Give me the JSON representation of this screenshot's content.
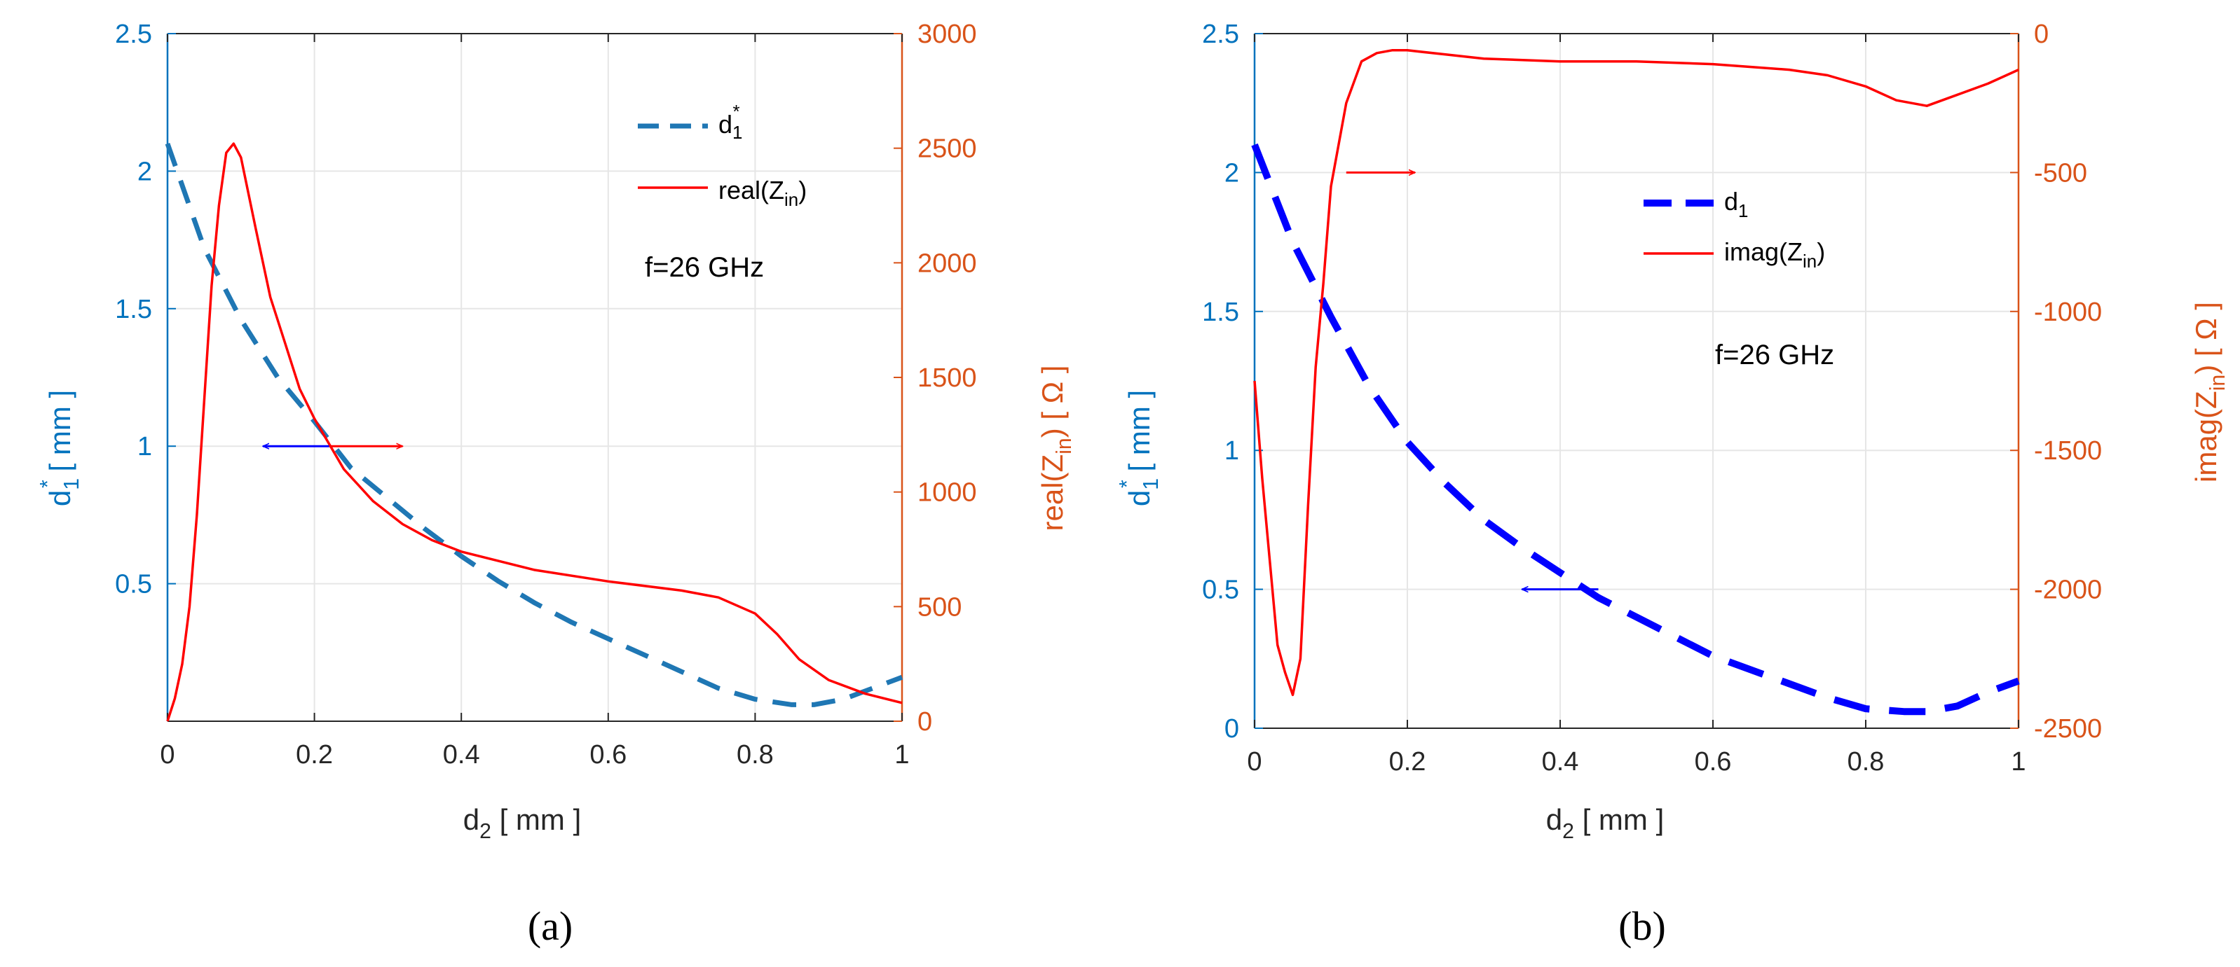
{
  "colors": {
    "left_axis": "#0072bd",
    "right_axis": "#d95319",
    "curve_a_dash": "#1f77b4",
    "curve_b_dash": "#0000ff",
    "impedance": "#ff0000",
    "arrow_left": "#0000ff",
    "grid": "#e6e6e6"
  },
  "chart_data": [
    {
      "type": "line",
      "panel_label": "(a)",
      "annotation": "f=26 GHz",
      "xlabel": {
        "main": "d",
        "sub": "2",
        "rest": " [ mm ]"
      },
      "ylabel_left": {
        "main": "d",
        "sub": "1",
        "sup": "*",
        "rest": " [ mm ]"
      },
      "ylabel_right": {
        "pre": "real(Z",
        "sub": "in",
        "rest": ") [ Ω ]"
      },
      "xlim": [
        0,
        1
      ],
      "ylim_left": [
        0,
        2.5
      ],
      "ylim_right": [
        0,
        3000
      ],
      "xticks": [
        "0",
        "0.2",
        "0.4",
        "0.6",
        "0.8",
        "1"
      ],
      "xtick_values": [
        0,
        0.2,
        0.4,
        0.6,
        0.8,
        1
      ],
      "yticks_left": [
        "0.5",
        "1",
        "1.5",
        "2",
        "2.5"
      ],
      "ytick_left_values": [
        0.5,
        1,
        1.5,
        2,
        2.5
      ],
      "yticks_right": [
        "0",
        "500",
        "1000",
        "1500",
        "2000",
        "2500",
        "3000"
      ],
      "ytick_right_values": [
        0,
        500,
        1000,
        1500,
        2000,
        2500,
        3000
      ],
      "legend": [
        {
          "main": "d",
          "sub": "1",
          "sup": "*",
          "rest": ""
        },
        {
          "pre": "real(Z",
          "sub": "in",
          "rest": ")"
        }
      ],
      "series": [
        {
          "name": "d1*",
          "axis": "left",
          "style": "dashed",
          "x": [
            0,
            0.05,
            0.1,
            0.15,
            0.2,
            0.25,
            0.3,
            0.35,
            0.4,
            0.45,
            0.5,
            0.55,
            0.6,
            0.65,
            0.7,
            0.75,
            0.8,
            0.85,
            0.88,
            0.92,
            0.96,
            1.0
          ],
          "y": [
            2.1,
            1.72,
            1.46,
            1.25,
            1.09,
            0.92,
            0.81,
            0.7,
            0.6,
            0.51,
            0.43,
            0.36,
            0.3,
            0.24,
            0.18,
            0.12,
            0.08,
            0.06,
            0.06,
            0.08,
            0.12,
            0.16
          ]
        },
        {
          "name": "real(Zin)",
          "axis": "right",
          "style": "solid",
          "x": [
            0,
            0.01,
            0.02,
            0.03,
            0.04,
            0.05,
            0.06,
            0.07,
            0.08,
            0.09,
            0.1,
            0.12,
            0.14,
            0.16,
            0.18,
            0.2,
            0.24,
            0.28,
            0.32,
            0.36,
            0.4,
            0.5,
            0.6,
            0.7,
            0.75,
            0.8,
            0.83,
            0.86,
            0.9,
            0.95,
            1.0
          ],
          "y": [
            0,
            100,
            250,
            500,
            900,
            1400,
            1900,
            2250,
            2480,
            2520,
            2460,
            2150,
            1850,
            1650,
            1450,
            1320,
            1100,
            960,
            860,
            790,
            740,
            660,
            610,
            570,
            540,
            470,
            380,
            270,
            180,
            120,
            80
          ]
        }
      ],
      "arrows": [
        {
          "direction": "left",
          "x_from": 0.22,
          "x_to": 0.13,
          "y_left": 1.0
        },
        {
          "direction": "right",
          "x_from": 0.22,
          "x_to": 0.32,
          "y_left": 1.0
        }
      ]
    },
    {
      "type": "line",
      "panel_label": "(b)",
      "annotation": "f=26 GHz",
      "xlabel": {
        "main": "d",
        "sub": "2",
        "rest": " [ mm ]"
      },
      "ylabel_left": {
        "main": "d",
        "sub": "1",
        "sup": "*",
        "rest": " [ mm ]"
      },
      "ylabel_right": {
        "pre": "imag(Z",
        "sub": "in",
        "rest": ") [ Ω ]"
      },
      "xlim": [
        0,
        1
      ],
      "ylim_left": [
        0,
        2.5
      ],
      "ylim_right": [
        -2500,
        0
      ],
      "xticks": [
        "0",
        "0.2",
        "0.4",
        "0.6",
        "0.8",
        "1"
      ],
      "xtick_values": [
        0,
        0.2,
        0.4,
        0.6,
        0.8,
        1
      ],
      "yticks_left": [
        "0",
        "0.5",
        "1",
        "1.5",
        "2",
        "2.5"
      ],
      "ytick_left_values": [
        0,
        0.5,
        1,
        1.5,
        2,
        2.5
      ],
      "yticks_right": [
        "0",
        "-500",
        "-1000",
        "-1500",
        "-2000",
        "-2500"
      ],
      "ytick_right_values": [
        0,
        -500,
        -1000,
        -1500,
        -2000,
        -2500
      ],
      "legend": [
        {
          "main": "d",
          "sub": "1",
          "sup": "",
          "rest": ""
        },
        {
          "pre": "imag(Z",
          "sub": "in",
          "rest": ")"
        }
      ],
      "series": [
        {
          "name": "d1",
          "axis": "left",
          "style": "dashed",
          "x": [
            0,
            0.05,
            0.1,
            0.15,
            0.2,
            0.25,
            0.3,
            0.35,
            0.4,
            0.45,
            0.5,
            0.55,
            0.6,
            0.65,
            0.7,
            0.75,
            0.8,
            0.85,
            0.88,
            0.92,
            0.96,
            1.0
          ],
          "y": [
            2.1,
            1.75,
            1.48,
            1.23,
            1.03,
            0.88,
            0.75,
            0.65,
            0.56,
            0.47,
            0.4,
            0.33,
            0.26,
            0.21,
            0.16,
            0.11,
            0.07,
            0.06,
            0.06,
            0.08,
            0.13,
            0.17
          ]
        },
        {
          "name": "imag(Zin)",
          "axis": "right",
          "style": "solid",
          "x": [
            0,
            0.01,
            0.02,
            0.03,
            0.04,
            0.05,
            0.06,
            0.07,
            0.08,
            0.09,
            0.1,
            0.11,
            0.12,
            0.14,
            0.16,
            0.18,
            0.2,
            0.25,
            0.3,
            0.4,
            0.5,
            0.6,
            0.7,
            0.75,
            0.8,
            0.84,
            0.88,
            0.92,
            0.96,
            1.0
          ],
          "y": [
            -1250,
            -1600,
            -1900,
            -2200,
            -2300,
            -2380,
            -2250,
            -1700,
            -1200,
            -900,
            -550,
            -400,
            -250,
            -100,
            -70,
            -60,
            -60,
            -75,
            -90,
            -100,
            -100,
            -110,
            -130,
            -150,
            -190,
            -240,
            -260,
            -220,
            -180,
            -130
          ]
        }
      ],
      "arrows": [
        {
          "direction": "left",
          "x_from": 0.45,
          "x_to": 0.35,
          "y_left": 0.5
        },
        {
          "direction": "right",
          "x_from": 0.12,
          "x_to": 0.21,
          "y_left": 2.0
        }
      ]
    }
  ]
}
